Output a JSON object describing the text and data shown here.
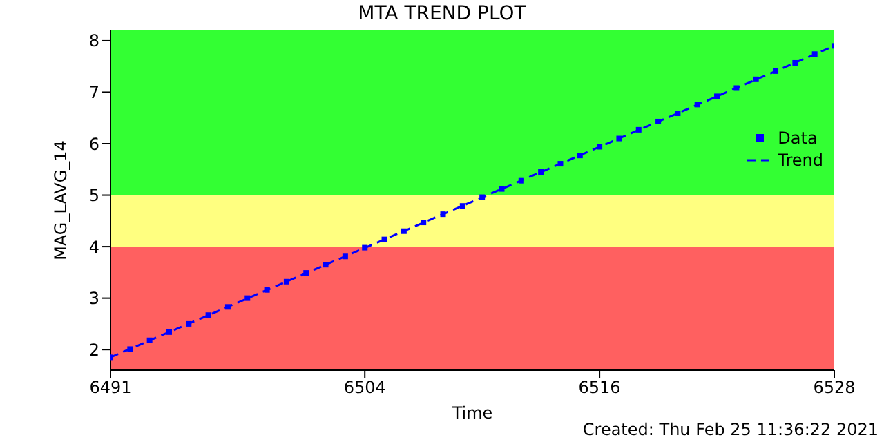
{
  "chart_data": {
    "type": "scatter",
    "title": "MTA TREND PLOT",
    "xlabel": "Time",
    "ylabel": "MAG_LAVG_14",
    "annotations": [
      "Created: Thu Feb 25 11:36:22 2021"
    ],
    "xlim": [
      6491,
      6528
    ],
    "xticks": [
      6491,
      6504,
      6516,
      6528
    ],
    "ylim": [
      1.6,
      8.2
    ],
    "yticks": [
      2,
      3,
      4,
      5,
      6,
      7,
      8
    ],
    "bands": [
      {
        "axis": "y",
        "from": 1.6,
        "to": 4,
        "color": "#ff6060"
      },
      {
        "axis": "y",
        "from": 4,
        "to": 5,
        "color": "#ffff80"
      },
      {
        "axis": "y",
        "from": 5,
        "to": 8.2,
        "color": "#33ff33"
      }
    ],
    "grid": false,
    "legend": "top right",
    "series": [
      {
        "name": "Data",
        "marker": "square",
        "color": "#0000ff",
        "x": [
          6491,
          6492,
          6493,
          6494,
          6495,
          6496,
          6497,
          6498,
          6499,
          6500,
          6501,
          6502,
          6503,
          6504,
          6505,
          6506,
          6507,
          6508,
          6509,
          6510,
          6511,
          6512,
          6513,
          6514,
          6515,
          6516,
          6517,
          6518,
          6519,
          6520,
          6521,
          6522,
          6523,
          6524,
          6525,
          6526,
          6527,
          6528
        ],
        "values": [
          1.85,
          2.01,
          2.18,
          2.34,
          2.5,
          2.67,
          2.83,
          3.0,
          3.16,
          3.32,
          3.49,
          3.65,
          3.81,
          3.98,
          4.14,
          4.3,
          4.47,
          4.63,
          4.79,
          4.96,
          5.12,
          5.28,
          5.45,
          5.61,
          5.77,
          5.94,
          6.1,
          6.27,
          6.43,
          6.59,
          6.76,
          6.92,
          7.08,
          7.25,
          7.41,
          7.57,
          7.74,
          7.9
        ]
      },
      {
        "name": "Trend",
        "type": "line",
        "marker": "none",
        "line_style": "dashed",
        "color": "#0000ff",
        "x": [
          6491,
          6528
        ],
        "values": [
          1.85,
          7.9
        ]
      }
    ]
  }
}
